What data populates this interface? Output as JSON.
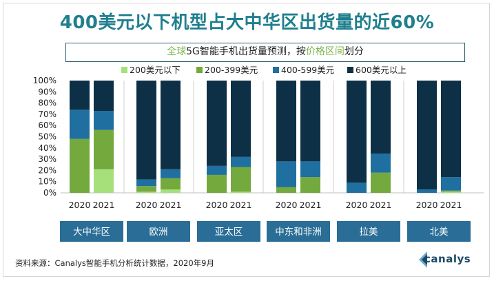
{
  "title": "400美元以下机型占大中华区出货量的近60%",
  "subtitle": {
    "part1_green": "全球",
    "part2": "5G智能手机出货量预测，按",
    "part3_green": "价格区间",
    "part4": "划分"
  },
  "footer": "资料来源：Canalys智能手机分析统计数据，2020年9月",
  "logo_text": "canalys",
  "colors": {
    "under200": "#a6e07b",
    "r200_399": "#74a93d",
    "r400_599": "#1f6fa0",
    "over600": "#0e3046",
    "title": "#1f7f8e",
    "region_box": "#2a6d96"
  },
  "chart_data": {
    "type": "bar",
    "stacked": true,
    "ylim": [
      0,
      100
    ],
    "yticks": [
      "0%",
      "10%",
      "20%",
      "30%",
      "40%",
      "50%",
      "60%",
      "70%",
      "80%",
      "90%",
      "100%"
    ],
    "legend": [
      "200美元以下",
      "200-399美元",
      "400-599美元",
      "600美元以上"
    ],
    "legend_position": "top",
    "groups": [
      {
        "region": "大中华区",
        "bars": [
          {
            "year": "2020",
            "values": [
              0,
              48,
              26,
              26
            ]
          },
          {
            "year": "2021",
            "values": [
              21,
              35,
              17,
              27
            ]
          }
        ]
      },
      {
        "region": "欧洲",
        "bars": [
          {
            "year": "2020",
            "values": [
              1,
              5,
              6,
              88
            ]
          },
          {
            "year": "2021",
            "values": [
              3,
              10,
              8,
              79
            ]
          }
        ]
      },
      {
        "region": "亚太区",
        "bars": [
          {
            "year": "2020",
            "values": [
              0,
              16,
              8,
              76
            ]
          },
          {
            "year": "2021",
            "values": [
              1,
              22,
              9,
              68
            ]
          }
        ]
      },
      {
        "region": "中东和非洲",
        "bars": [
          {
            "year": "2020",
            "values": [
              0,
              5,
              23,
              72
            ]
          },
          {
            "year": "2021",
            "values": [
              0,
              14,
              14,
              72
            ]
          }
        ]
      },
      {
        "region": "拉美",
        "bars": [
          {
            "year": "2020",
            "values": [
              0,
              0,
              9,
              91
            ]
          },
          {
            "year": "2021",
            "values": [
              0,
              18,
              17,
              65
            ]
          }
        ]
      },
      {
        "region": "北美",
        "bars": [
          {
            "year": "2020",
            "values": [
              0,
              0,
              3,
              97
            ]
          },
          {
            "year": "2021",
            "values": [
              1,
              1,
              12,
              86
            ]
          }
        ]
      }
    ]
  }
}
